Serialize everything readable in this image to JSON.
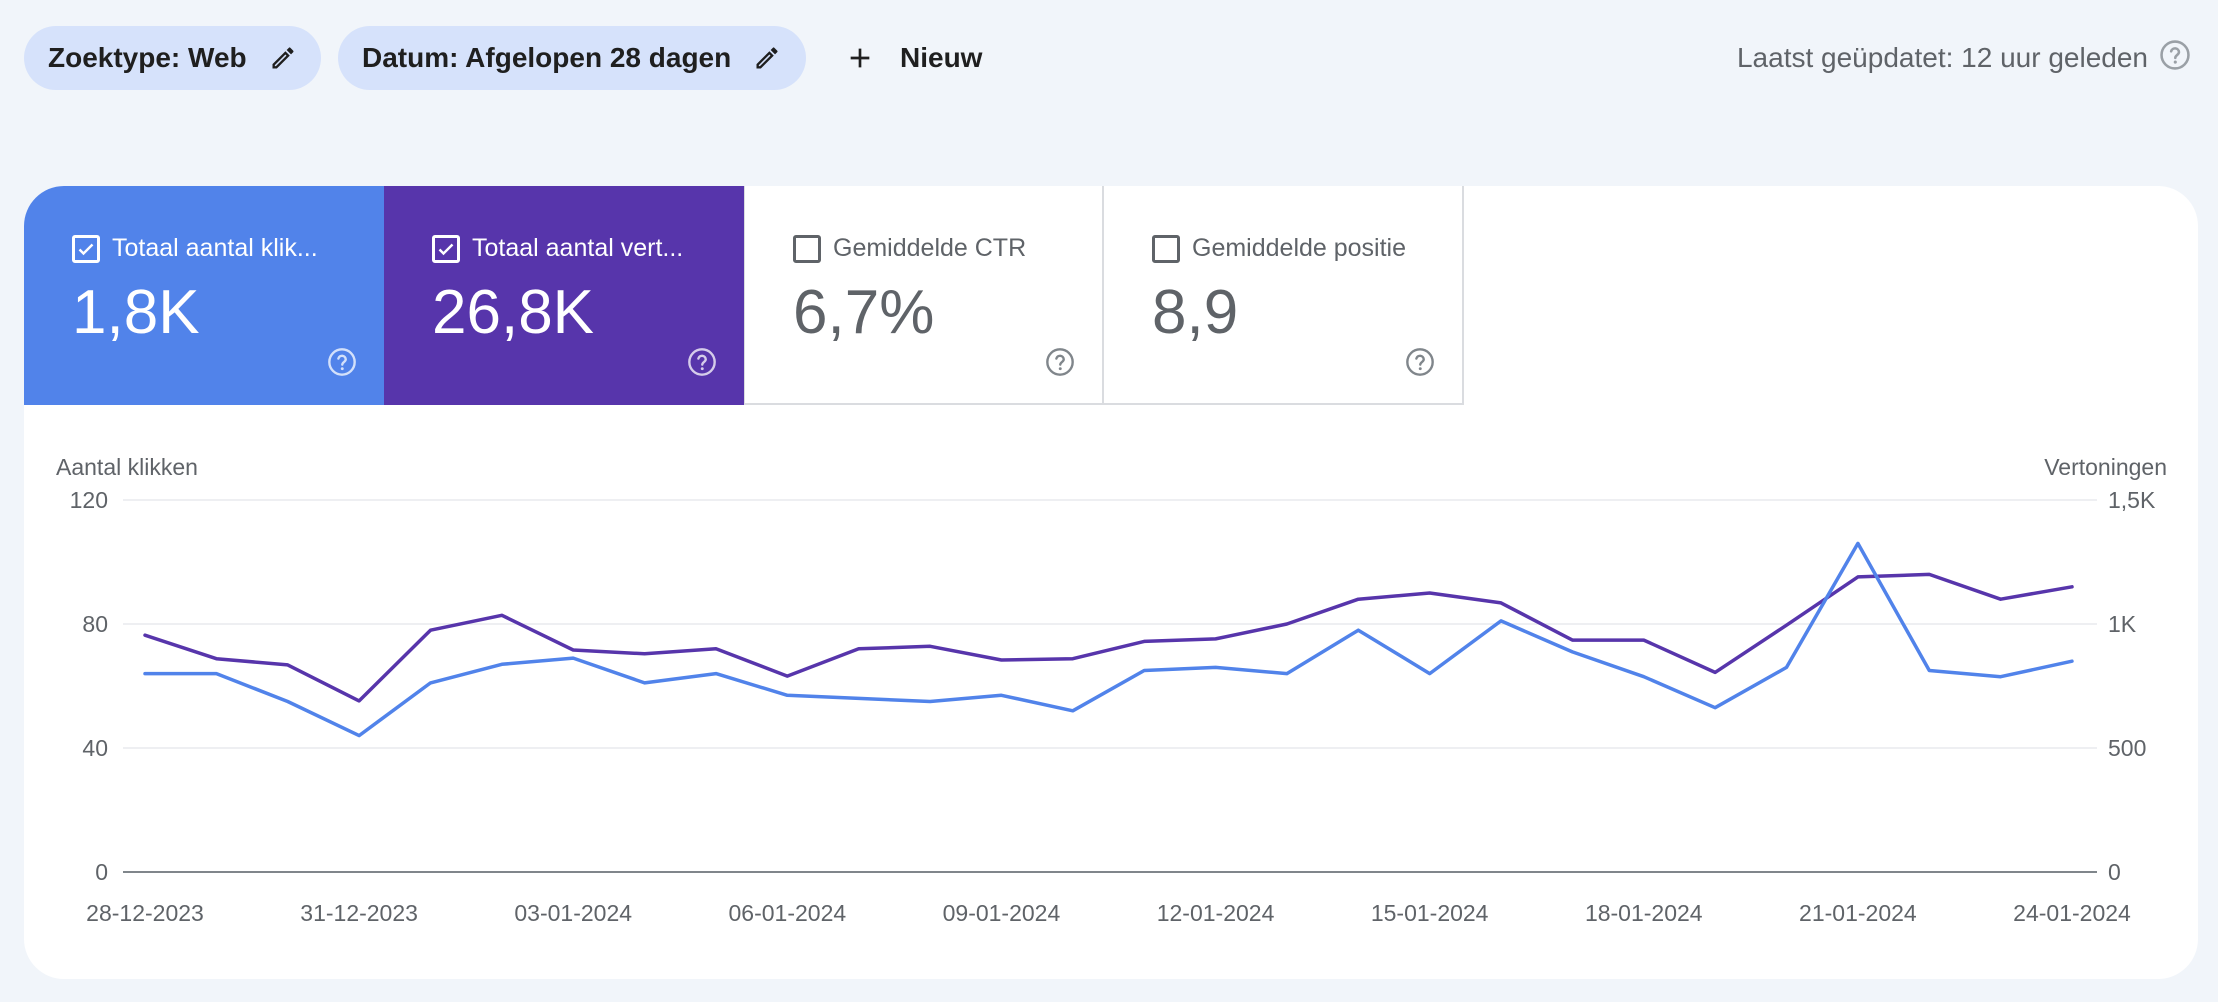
{
  "filters": {
    "search_type": "Zoektype: Web",
    "date": "Datum: Afgelopen 28 dagen",
    "new_label": "Nieuw"
  },
  "last_updated": "Laatst geüpdatet: 12 uur geleden",
  "metrics": [
    {
      "label": "Totaal aantal klik...",
      "value": "1,8K",
      "checked": true,
      "color": "#5183ea"
    },
    {
      "label": "Totaal aantal vert...",
      "value": "26,8K",
      "checked": true,
      "color": "#5735ab"
    },
    {
      "label": "Gemiddelde CTR",
      "value": "6,7%",
      "checked": false
    },
    {
      "label": "Gemiddelde positie",
      "value": "8,9",
      "checked": false
    }
  ],
  "chart_data": {
    "type": "line",
    "left_axis_label": "Aantal klikken",
    "right_axis_label": "Vertoningen",
    "left_ticks": [
      "0",
      "40",
      "80",
      "120"
    ],
    "right_ticks": [
      "0",
      "500",
      "1K",
      "1,5K"
    ],
    "left_ylim": [
      0,
      120
    ],
    "right_ylim": [
      0,
      1500
    ],
    "x_tick_labels": [
      "28-12-2023",
      "31-12-2023",
      "03-01-2024",
      "06-01-2024",
      "09-01-2024",
      "12-01-2024",
      "15-01-2024",
      "18-01-2024",
      "21-01-2024",
      "24-01-2024"
    ],
    "x": [
      "28-12-2023",
      "29-12-2023",
      "30-12-2023",
      "31-12-2023",
      "01-01-2024",
      "02-01-2024",
      "03-01-2024",
      "04-01-2024",
      "05-01-2024",
      "06-01-2024",
      "07-01-2024",
      "08-01-2024",
      "09-01-2024",
      "10-01-2024",
      "11-01-2024",
      "12-01-2024",
      "13-01-2024",
      "14-01-2024",
      "15-01-2024",
      "16-01-2024",
      "17-01-2024",
      "18-01-2024",
      "19-01-2024",
      "20-01-2024",
      "21-01-2024",
      "22-01-2024",
      "23-01-2024",
      "24-01-2024"
    ],
    "series": [
      {
        "axis": "left",
        "color": "#5183ea",
        "values": [
          64,
          64,
          55,
          44,
          61,
          67,
          69,
          61,
          64,
          57,
          56,
          55,
          57,
          52,
          65,
          66,
          64,
          78,
          64,
          81,
          71,
          63,
          53,
          66,
          106,
          65,
          63,
          68
        ]
      },
      {
        "axis": "right",
        "color": "#5735ab",
        "values": [
          955,
          860,
          835,
          690,
          975,
          1035,
          895,
          880,
          900,
          790,
          900,
          910,
          855,
          860,
          930,
          940,
          1000,
          1100,
          1125,
          1085,
          935,
          935,
          805,
          995,
          1190,
          1200,
          1100,
          1150
        ]
      }
    ],
    "grid": true
  }
}
